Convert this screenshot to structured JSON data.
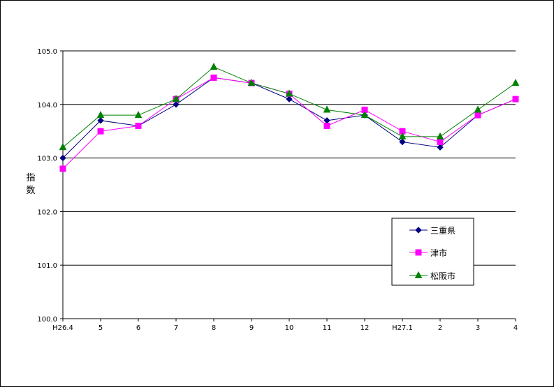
{
  "chart_data": {
    "type": "line",
    "title": "",
    "xlabel": "",
    "ylabel": "指数",
    "ylim": [
      100.0,
      105.0
    ],
    "yticks": [
      "100.0",
      "101.0",
      "102.0",
      "103.0",
      "104.0",
      "105.0"
    ],
    "categories": [
      "H26.4",
      "5",
      "6",
      "7",
      "8",
      "9",
      "10",
      "11",
      "12",
      "H27.1",
      "2",
      "3",
      "4"
    ],
    "grid": true,
    "legend_position": "right",
    "series": [
      {
        "name": "三重県",
        "color": "#000080",
        "marker": "diamond",
        "values": [
          103.0,
          103.7,
          103.6,
          104.0,
          104.5,
          104.4,
          104.1,
          103.7,
          103.8,
          103.3,
          103.2,
          103.8,
          104.1
        ]
      },
      {
        "name": "津市",
        "color": "#ff00ff",
        "marker": "square",
        "values": [
          102.8,
          103.5,
          103.6,
          104.1,
          104.5,
          104.4,
          104.2,
          103.6,
          103.9,
          103.5,
          103.3,
          103.8,
          104.1
        ]
      },
      {
        "name": "松阪市",
        "color": "#008000",
        "marker": "triangle",
        "values": [
          103.2,
          103.8,
          103.8,
          104.1,
          104.7,
          104.4,
          104.2,
          103.9,
          103.8,
          103.4,
          103.4,
          103.9,
          104.4
        ]
      }
    ]
  }
}
